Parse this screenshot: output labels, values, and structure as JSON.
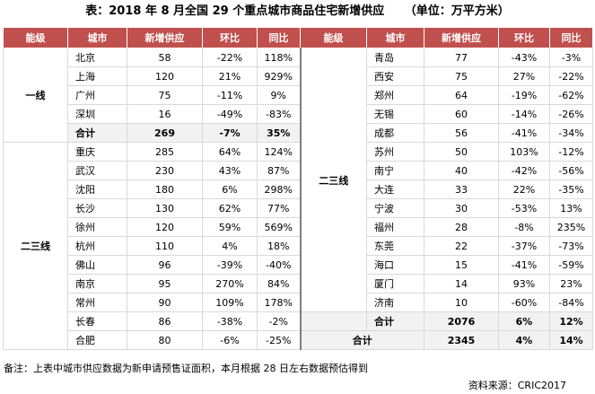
{
  "title": "表：2018 年 8 月全国 29 个重点城市商品住宅新增供应",
  "unit": "（单位：万平方米）",
  "headers": {
    "level": "能级",
    "city": "城市",
    "supply": "新增供应",
    "mom": "环比",
    "yoy": "同比"
  },
  "levels": {
    "tier1": "一线",
    "tier23_left": "二三线",
    "tier23_right": "二三线"
  },
  "left": {
    "tier1_rows": [
      {
        "city": "北京",
        "supply": "58",
        "mom": "-22%",
        "yoy": "118%"
      },
      {
        "city": "上海",
        "supply": "120",
        "mom": "21%",
        "yoy": "929%"
      },
      {
        "city": "广州",
        "supply": "75",
        "mom": "-11%",
        "yoy": "9%"
      },
      {
        "city": "深圳",
        "supply": "16",
        "mom": "-49%",
        "yoy": "-83%"
      }
    ],
    "tier1_total": {
      "label": "合计",
      "supply": "269",
      "mom": "-7%",
      "yoy": "35%"
    },
    "tier23_rows": [
      {
        "city": "重庆",
        "supply": "285",
        "mom": "64%",
        "yoy": "124%"
      },
      {
        "city": "武汉",
        "supply": "230",
        "mom": "43%",
        "yoy": "87%"
      },
      {
        "city": "沈阳",
        "supply": "180",
        "mom": "6%",
        "yoy": "298%"
      },
      {
        "city": "长沙",
        "supply": "130",
        "mom": "62%",
        "yoy": "77%"
      },
      {
        "city": "徐州",
        "supply": "120",
        "mom": "59%",
        "yoy": "569%"
      },
      {
        "city": "杭州",
        "supply": "110",
        "mom": "4%",
        "yoy": "18%"
      },
      {
        "city": "佛山",
        "supply": "96",
        "mom": "-39%",
        "yoy": "-40%"
      },
      {
        "city": "南京",
        "supply": "95",
        "mom": "270%",
        "yoy": "84%"
      },
      {
        "city": "常州",
        "supply": "90",
        "mom": "109%",
        "yoy": "178%"
      },
      {
        "city": "长春",
        "supply": "86",
        "mom": "-38%",
        "yoy": "-2%"
      },
      {
        "city": "合肥",
        "supply": "80",
        "mom": "-6%",
        "yoy": "-25%"
      }
    ]
  },
  "right": {
    "rows": [
      {
        "city": "青岛",
        "supply": "77",
        "mom": "-43%",
        "yoy": "-3%"
      },
      {
        "city": "西安",
        "supply": "75",
        "mom": "27%",
        "yoy": "-22%"
      },
      {
        "city": "郑州",
        "supply": "64",
        "mom": "-19%",
        "yoy": "-62%"
      },
      {
        "city": "无锡",
        "supply": "60",
        "mom": "-14%",
        "yoy": "-26%"
      },
      {
        "city": "成都",
        "supply": "56",
        "mom": "-41%",
        "yoy": "-34%"
      },
      {
        "city": "苏州",
        "supply": "50",
        "mom": "103%",
        "yoy": "-12%"
      },
      {
        "city": "南宁",
        "supply": "40",
        "mom": "-42%",
        "yoy": "-56%"
      },
      {
        "city": "大连",
        "supply": "33",
        "mom": "22%",
        "yoy": "-35%"
      },
      {
        "city": "宁波",
        "supply": "30",
        "mom": "-53%",
        "yoy": "13%"
      },
      {
        "city": "福州",
        "supply": "28",
        "mom": "-8%",
        "yoy": "235%"
      },
      {
        "city": "东莞",
        "supply": "22",
        "mom": "-37%",
        "yoy": "-73%"
      },
      {
        "city": "海口",
        "supply": "15",
        "mom": "-41%",
        "yoy": "-59%"
      },
      {
        "city": "厦门",
        "supply": "14",
        "mom": "93%",
        "yoy": "23%"
      },
      {
        "city": "济南",
        "supply": "10",
        "mom": "-60%",
        "yoy": "-84%"
      }
    ],
    "tier23_total": {
      "label": "合计",
      "supply": "2076",
      "mom": "6%",
      "yoy": "12%"
    },
    "grand_total": {
      "label": "合计",
      "supply": "2345",
      "mom": "4%",
      "yoy": "14%"
    }
  },
  "note": "备注：上表中城市供应数据为新申请预售证面积，本月根据 28 日左右数据预估得到",
  "source": "资料来源：CRIC2017",
  "colors": {
    "header_bg": "#c0504d",
    "total_bg": "#f2f2f2"
  }
}
